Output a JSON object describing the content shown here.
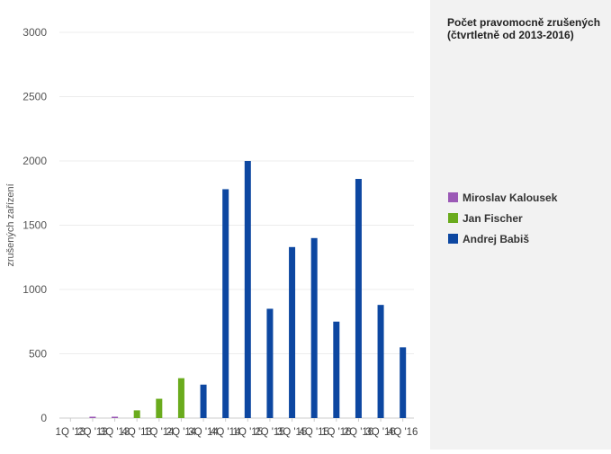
{
  "panel": {
    "title": "Počet pravomocně zrušených (čtvrtletně od 2013-2016)"
  },
  "legend": [
    {
      "name": "Miroslav Kalousek",
      "color": "#9b59b6"
    },
    {
      "name": "Jan Fischer",
      "color": "#6aab1d"
    },
    {
      "name": "Andrej Babiš",
      "color": "#0d47a1"
    }
  ],
  "chart_data": {
    "type": "bar",
    "ylabel": "zrušených zařízení",
    "ylim": [
      0,
      3000
    ],
    "yticks": [
      0,
      500,
      1000,
      1500,
      2000,
      2500,
      3000
    ],
    "grid": true,
    "legend_position": "right",
    "categories": [
      "1Q '13",
      "2Q '13",
      "3Q '13",
      "4Q '13",
      "1Q '14",
      "2Q '14",
      "3Q '14",
      "4Q '14",
      "1Q '15",
      "2Q '15",
      "3Q '15",
      "4Q '15",
      "1Q '16",
      "2Q '16",
      "3Q '16",
      "4Q '16"
    ],
    "series": [
      {
        "name": "Miroslav Kalousek",
        "color": "#9b59b6",
        "values": [
          0,
          5,
          5,
          0,
          0,
          0,
          0,
          0,
          0,
          0,
          0,
          0,
          0,
          0,
          0,
          0
        ]
      },
      {
        "name": "Jan Fischer",
        "color": "#6aab1d",
        "values": [
          0,
          0,
          0,
          60,
          150,
          310,
          0,
          0,
          0,
          0,
          0,
          0,
          0,
          0,
          0,
          0
        ]
      },
      {
        "name": "Andrej Babiš",
        "color": "#0d47a1",
        "values": [
          0,
          0,
          0,
          0,
          0,
          0,
          260,
          1780,
          2000,
          850,
          1330,
          1400,
          750,
          1860,
          880,
          550
        ]
      }
    ]
  }
}
